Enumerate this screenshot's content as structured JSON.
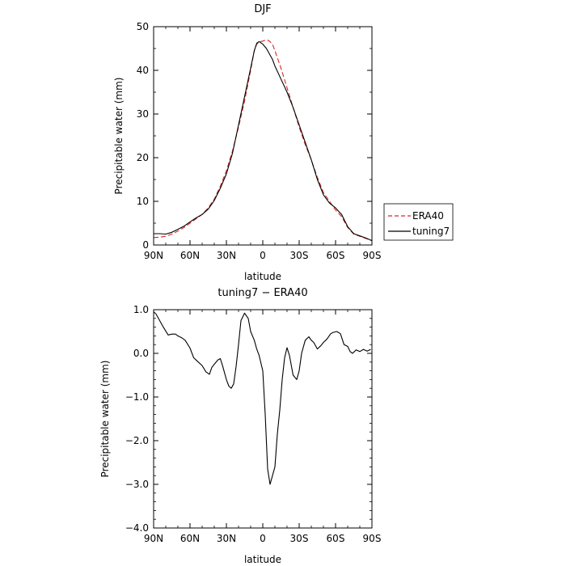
{
  "chart_data": [
    {
      "type": "line",
      "title": "DJF",
      "xlabel": "latitude",
      "ylabel": "Precipitable water  (mm)",
      "xlim": [
        90,
        -90
      ],
      "ylim": [
        0,
        50
      ],
      "x_ticks": [
        {
          "value": 90,
          "label": "90N"
        },
        {
          "value": 60,
          "label": "60N"
        },
        {
          "value": 30,
          "label": "30N"
        },
        {
          "value": 0,
          "label": "0"
        },
        {
          "value": -30,
          "label": "30S"
        },
        {
          "value": -60,
          "label": "60S"
        },
        {
          "value": -90,
          "label": "90S"
        }
      ],
      "y_ticks": [
        {
          "value": 0,
          "label": "0"
        },
        {
          "value": 10,
          "label": "10"
        },
        {
          "value": 20,
          "label": "20"
        },
        {
          "value": 30,
          "label": "30"
        },
        {
          "value": 40,
          "label": "40"
        },
        {
          "value": 50,
          "label": "50"
        }
      ],
      "legend": {
        "placement": "right"
      },
      "series": [
        {
          "name": "ERA40",
          "color": "#d62728",
          "dash": "dashed",
          "x": [
            90,
            85,
            80,
            75,
            70,
            65,
            60,
            55,
            50,
            45,
            40,
            35,
            30,
            25,
            20,
            15,
            10,
            7,
            5,
            3,
            0,
            -3,
            -5,
            -8,
            -10,
            -15,
            -20,
            -25,
            -30,
            -35,
            -40,
            -45,
            -50,
            -55,
            -60,
            -65,
            -70,
            -75,
            -80,
            -85,
            -90
          ],
          "y": [
            1.7,
            1.8,
            2.0,
            2.5,
            3.2,
            4.0,
            5.0,
            6.0,
            7.0,
            8.5,
            10.5,
            13.5,
            17.0,
            21.5,
            27.0,
            33.0,
            40.0,
            44.5,
            46.0,
            46.5,
            46.7,
            47.0,
            46.8,
            46.0,
            44.5,
            40.5,
            36.0,
            31.5,
            27.0,
            23.0,
            19.5,
            15.5,
            12.0,
            10.0,
            8.0,
            6.5,
            4.0,
            2.5,
            2.0,
            1.5,
            1.0
          ]
        },
        {
          "name": "tuning7",
          "color": "#000000",
          "dash": "solid",
          "x": [
            90,
            85,
            80,
            75,
            70,
            65,
            60,
            55,
            50,
            45,
            40,
            35,
            30,
            25,
            20,
            15,
            10,
            7,
            5,
            3,
            0,
            -3,
            -5,
            -8,
            -10,
            -15,
            -20,
            -25,
            -30,
            -35,
            -40,
            -45,
            -50,
            -55,
            -60,
            -65,
            -70,
            -75,
            -80,
            -85,
            -90
          ],
          "y": [
            2.6,
            2.6,
            2.5,
            2.9,
            3.6,
            4.3,
            5.3,
            6.2,
            7.0,
            8.2,
            10.2,
            13.0,
            16.3,
            21.0,
            27.5,
            34.0,
            40.5,
            44.5,
            46.2,
            46.6,
            46.0,
            45.0,
            44.0,
            42.5,
            41.0,
            38.0,
            35.0,
            31.5,
            27.5,
            23.5,
            19.5,
            15.0,
            11.5,
            9.6,
            8.5,
            7.0,
            4.2,
            2.6,
            2.1,
            1.6,
            1.0
          ]
        }
      ]
    },
    {
      "type": "line",
      "title": "tuning7 − ERA40",
      "xlabel": "latitude",
      "ylabel": "Precipitable water  (mm)",
      "xlim": [
        90,
        -90
      ],
      "ylim": [
        -4.0,
        1.0
      ],
      "x_ticks": [
        {
          "value": 90,
          "label": "90N"
        },
        {
          "value": 60,
          "label": "60N"
        },
        {
          "value": 30,
          "label": "30N"
        },
        {
          "value": 0,
          "label": "0"
        },
        {
          "value": -30,
          "label": "30S"
        },
        {
          "value": -60,
          "label": "60S"
        },
        {
          "value": -90,
          "label": "90S"
        }
      ],
      "y_ticks": [
        {
          "value": 1.0,
          "label": "1.0"
        },
        {
          "value": 0.0,
          "label": "0.0"
        },
        {
          "value": -1.0,
          "label": "−1.0"
        },
        {
          "value": -2.0,
          "label": "−2.0"
        },
        {
          "value": -3.0,
          "label": "−3.0"
        },
        {
          "value": -4.0,
          "label": "−4.0"
        }
      ],
      "series": [
        {
          "color": "#000000",
          "dash": "solid",
          "x": [
            90,
            88,
            85,
            82,
            78,
            75,
            72,
            70,
            67,
            64,
            60,
            57,
            54,
            50,
            47,
            44,
            42,
            40,
            37,
            35,
            33,
            30,
            28,
            26,
            24,
            22,
            20,
            18,
            15,
            12,
            10,
            7,
            5,
            3,
            0,
            -2,
            -4,
            -6,
            -8,
            -10,
            -12,
            -14,
            -16,
            -18,
            -20,
            -22,
            -25,
            -28,
            -30,
            -32,
            -35,
            -38,
            -40,
            -42,
            -45,
            -48,
            -50,
            -53,
            -56,
            -58,
            -61,
            -64,
            -67,
            -70,
            -72,
            -74,
            -77,
            -80,
            -83,
            -86,
            -89
          ],
          "y": [
            0.95,
            0.9,
            0.75,
            0.6,
            0.42,
            0.44,
            0.44,
            0.4,
            0.36,
            0.3,
            0.12,
            -0.1,
            -0.18,
            -0.28,
            -0.42,
            -0.48,
            -0.32,
            -0.25,
            -0.15,
            -0.12,
            -0.3,
            -0.6,
            -0.75,
            -0.8,
            -0.7,
            -0.3,
            0.2,
            0.75,
            0.92,
            0.8,
            0.5,
            0.3,
            0.1,
            -0.05,
            -0.4,
            -1.4,
            -2.65,
            -3.0,
            -2.8,
            -2.6,
            -1.85,
            -1.3,
            -0.6,
            -0.1,
            0.13,
            -0.05,
            -0.5,
            -0.6,
            -0.4,
            0.0,
            0.3,
            0.38,
            0.3,
            0.25,
            0.1,
            0.18,
            0.25,
            0.33,
            0.45,
            0.48,
            0.5,
            0.45,
            0.2,
            0.16,
            0.04,
            0.0,
            0.08,
            0.04,
            0.09,
            0.05,
            0.09
          ]
        }
      ]
    }
  ]
}
